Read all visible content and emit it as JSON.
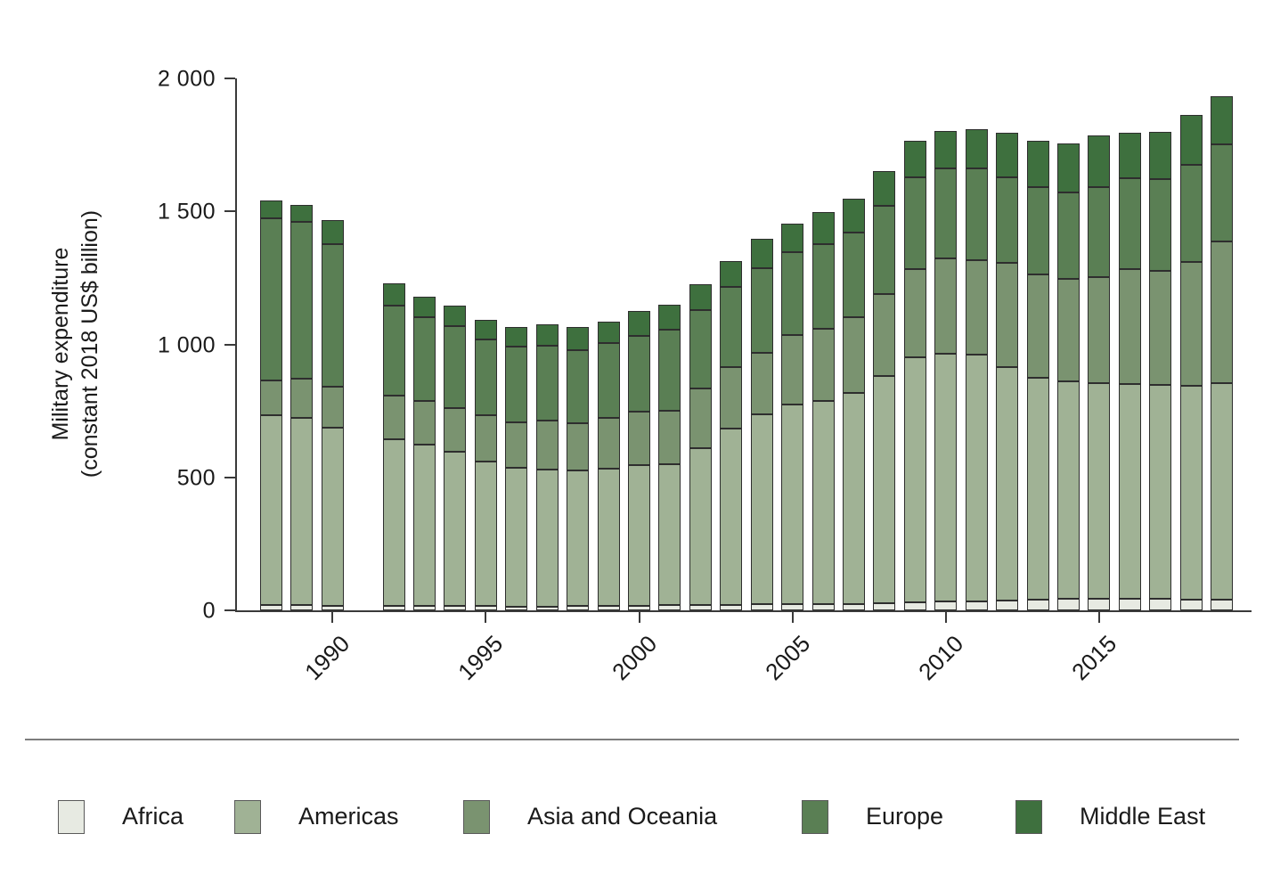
{
  "figure": {
    "y_axis_title_line1": "Military expenditure",
    "y_axis_title_line2": "(constant 2018 US$ billion)"
  },
  "legend": {
    "items": [
      {
        "label": "Africa",
        "color": "#e7eae2"
      },
      {
        "label": "Americas",
        "color": "#a0b295"
      },
      {
        "label": "Asia and Oceania",
        "color": "#7a9370"
      },
      {
        "label": "Europe",
        "color": "#5a7f54"
      },
      {
        "label": "Middle East",
        "color": "#3e703e"
      }
    ]
  },
  "chart_data": {
    "type": "bar",
    "stacked": true,
    "title": "",
    "xlabel": "",
    "ylabel": "Military expenditure (constant 2018 US$ billion)",
    "unit": "constant 2018 US$ billion",
    "ylim": [
      0,
      2000
    ],
    "grid": false,
    "legend_position": "bottom",
    "note": "No data for 1991 (gap in bars)",
    "x": [
      1988,
      1989,
      1990,
      1991,
      1992,
      1993,
      1994,
      1995,
      1996,
      1997,
      1998,
      1999,
      2000,
      2001,
      2002,
      2003,
      2004,
      2005,
      2006,
      2007,
      2008,
      2009,
      2010,
      2011,
      2012,
      2013,
      2014,
      2015,
      2016,
      2017,
      2018,
      2019
    ],
    "x_tick_years": [
      1990,
      1995,
      2000,
      2005,
      2010,
      2015
    ],
    "x_tick_labels": [
      "1990",
      "1995",
      "2000",
      "2005",
      "2010",
      "2015"
    ],
    "y_ticks": [
      {
        "value": 0,
        "label": "0"
      },
      {
        "value": 500,
        "label": "500"
      },
      {
        "value": 1000,
        "label": "1 000"
      },
      {
        "value": 1500,
        "label": "1 500"
      },
      {
        "value": 2000,
        "label": "2 000"
      }
    ],
    "series": [
      {
        "name": "Africa",
        "color": "#e7eae2",
        "values": [
          19,
          19,
          18,
          null,
          18,
          17,
          17,
          16,
          15,
          15,
          16,
          17,
          18,
          19,
          19,
          20,
          22,
          23,
          24,
          25,
          27,
          30,
          32,
          35,
          36,
          40,
          45,
          44,
          42,
          42,
          41,
          41
        ]
      },
      {
        "name": "Americas",
        "color": "#a0b295",
        "values": [
          713,
          705,
          669,
          null,
          626,
          607,
          579,
          544,
          520,
          514,
          511,
          514,
          528,
          532,
          591,
          662,
          716,
          752,
          764,
          794,
          855,
          922,
          934,
          928,
          880,
          835,
          817,
          809,
          809,
          805,
          803,
          814
        ]
      },
      {
        "name": "Asia and Oceania",
        "color": "#7a9370",
        "values": [
          132,
          148,
          153,
          null,
          164,
          162,
          164,
          172,
          173,
          184,
          175,
          191,
          201,
          201,
          225,
          231,
          230,
          260,
          271,
          284,
          307,
          332,
          356,
          355,
          391,
          388,
          385,
          399,
          432,
          430,
          465,
          533
        ]
      },
      {
        "name": "Europe",
        "color": "#5a7f54",
        "values": [
          611,
          589,
          537,
          null,
          337,
          316,
          308,
          285,
          284,
          283,
          276,
          284,
          285,
          302,
          295,
          302,
          318,
          312,
          318,
          318,
          332,
          343,
          339,
          342,
          321,
          328,
          325,
          339,
          342,
          346,
          366,
          365
        ]
      },
      {
        "name": "Middle East",
        "color": "#3e703e",
        "values": [
          66,
          64,
          92,
          null,
          84,
          77,
          77,
          74,
          73,
          78,
          87,
          81,
          92,
          95,
          95,
          98,
          110,
          108,
          121,
          128,
          132,
          138,
          143,
          149,
          166,
          174,
          184,
          193,
          170,
          175,
          188,
          180
        ]
      }
    ],
    "world_totals": [
      1541,
      1525,
      1469,
      null,
      1229,
      1179,
      1145,
      1091,
      1065,
      1074,
      1065,
      1087,
      1124,
      1149,
      1225,
      1313,
      1396,
      1455,
      1498,
      1549,
      1653,
      1765,
      1804,
      1809,
      1793,
      1765,
      1756,
      1784,
      1795,
      1798,
      1863,
      1933
    ]
  }
}
